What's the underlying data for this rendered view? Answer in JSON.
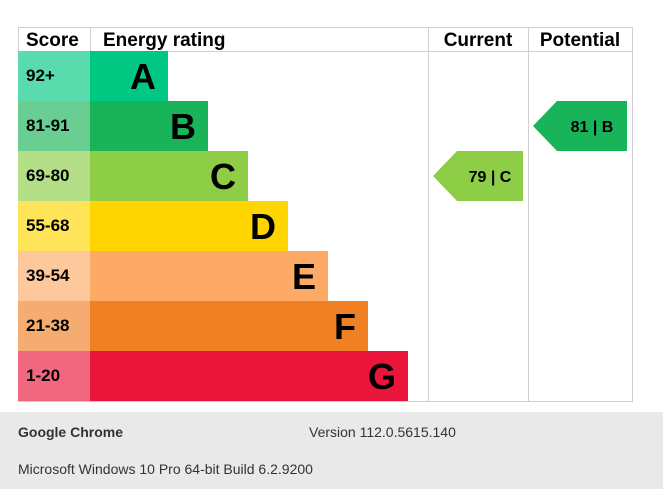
{
  "chart_data": {
    "type": "table",
    "headers": {
      "score": "Score",
      "energy_rating": "Energy rating",
      "current": "Current",
      "potential": "Potential"
    },
    "bands": [
      {
        "score": "92+",
        "letter": "A",
        "color": "#00c781"
      },
      {
        "score": "81-91",
        "letter": "B",
        "color": "#19b459"
      },
      {
        "score": "69-80",
        "letter": "C",
        "color": "#8dce46"
      },
      {
        "score": "55-68",
        "letter": "D",
        "color": "#ffd500"
      },
      {
        "score": "39-54",
        "letter": "E",
        "color": "#fcaa65"
      },
      {
        "score": "21-38",
        "letter": "F",
        "color": "#ef8023"
      },
      {
        "score": "1-20",
        "letter": "G",
        "color": "#e9153b"
      }
    ],
    "current": {
      "value": 79,
      "band": "C",
      "label": "79 | C"
    },
    "potential": {
      "value": 81,
      "band": "B",
      "label": "81 | B"
    }
  },
  "footer": {
    "browser": "Google Chrome",
    "version": "Version 112.0.5615.140",
    "os": "Microsoft Windows 10 Pro 64-bit Build 6.2.9200"
  }
}
